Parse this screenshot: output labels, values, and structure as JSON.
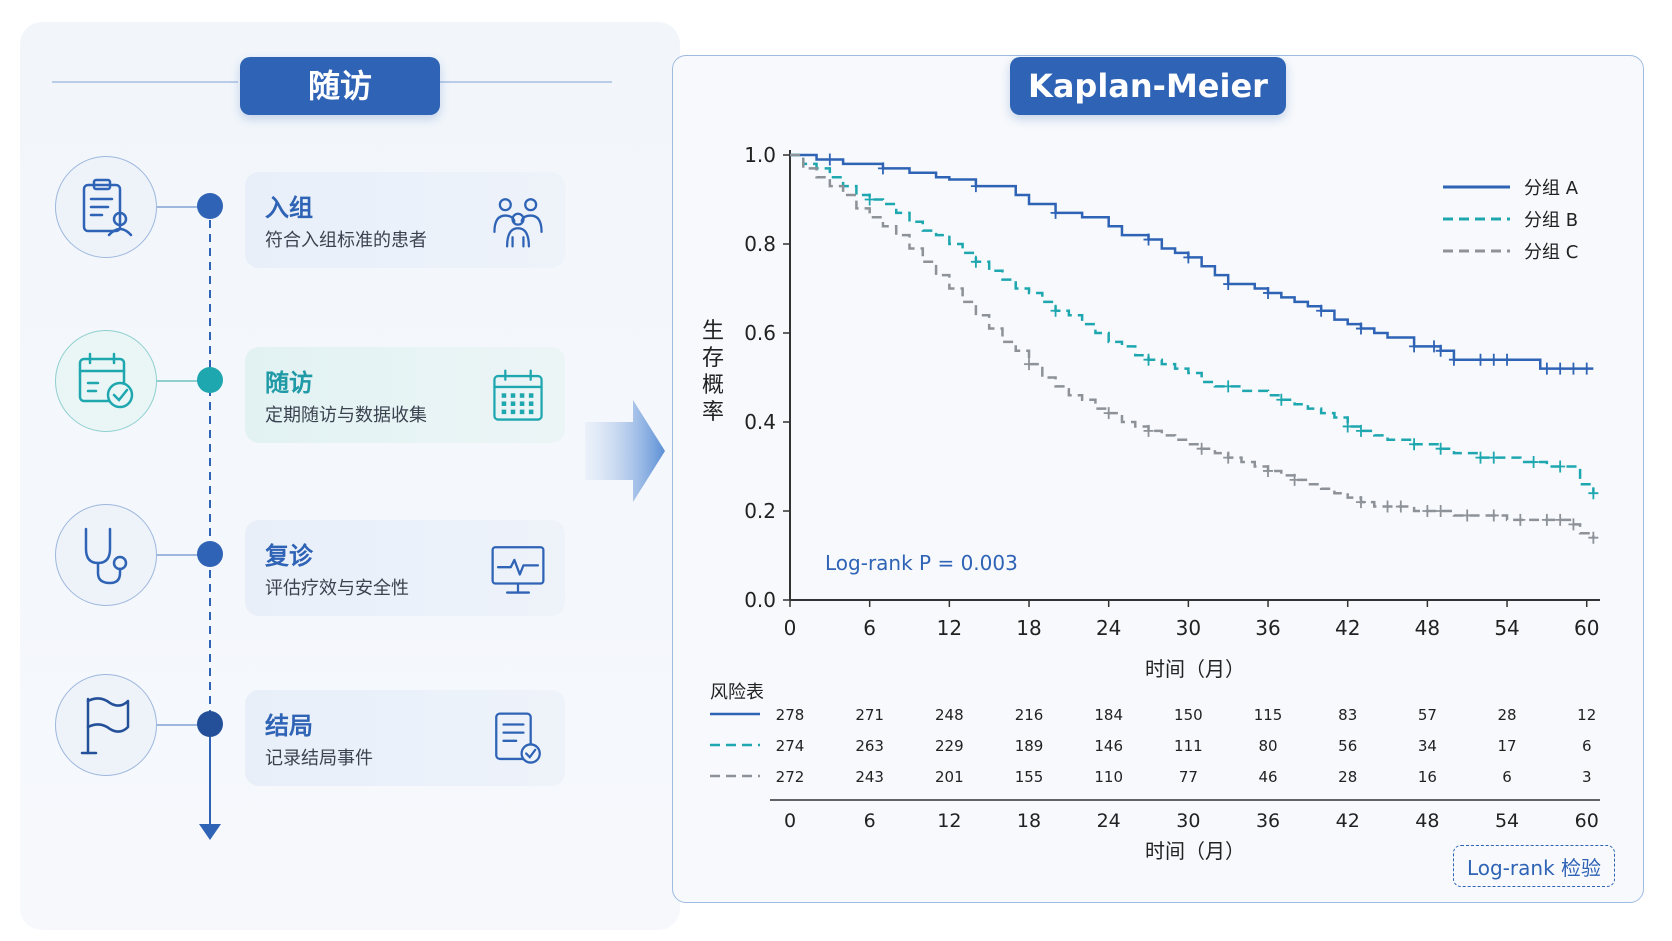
{
  "left": {
    "title": "随访",
    "steps": [
      {
        "title": "入组",
        "subtitle": "符合入组标准的患者",
        "icon": "clipboard-user-icon",
        "card_icon": "people-group-icon",
        "color": "#2f63b5"
      },
      {
        "title": "随访",
        "subtitle": "定期随访与数据收集",
        "icon": "calendar-check-icon",
        "card_icon": "calendar-grid-icon",
        "color": "#1fa7b0"
      },
      {
        "title": "复诊",
        "subtitle": "评估疗效与安全性",
        "icon": "stethoscope-icon",
        "card_icon": "monitor-pulse-icon",
        "color": "#2f63b5"
      },
      {
        "title": "结局",
        "subtitle": "记录结局事件",
        "icon": "flag-icon",
        "card_icon": "document-check-icon",
        "color": "#24509a"
      }
    ]
  },
  "right": {
    "title": "Kaplan-Meier",
    "button_label": "Log-rank 检验"
  },
  "chart_data": {
    "type": "line",
    "title": "Kaplan-Meier",
    "xlabel": "时间（月）",
    "ylabel": "生存概率",
    "xlim": [
      0,
      61
    ],
    "ylim": [
      0,
      1
    ],
    "x_ticks": [
      0,
      6,
      12,
      18,
      24,
      30,
      36,
      42,
      48,
      54,
      60
    ],
    "y_ticks": [
      "0.0",
      "0.2",
      "0.4",
      "0.6",
      "0.8",
      "1.0"
    ],
    "annotation": "Log-rank  P = 0.003",
    "legend_position": "top-right",
    "series": [
      {
        "name": "分组 A",
        "color": "#2f63b5",
        "dash": "solid",
        "points": [
          [
            0,
            1.0
          ],
          [
            2,
            0.99
          ],
          [
            4,
            0.98
          ],
          [
            7,
            0.97
          ],
          [
            9,
            0.96
          ],
          [
            11,
            0.95
          ],
          [
            12,
            0.945
          ],
          [
            14,
            0.93
          ],
          [
            17,
            0.91
          ],
          [
            18,
            0.89
          ],
          [
            20,
            0.87
          ],
          [
            22,
            0.86
          ],
          [
            24,
            0.84
          ],
          [
            25,
            0.82
          ],
          [
            27,
            0.81
          ],
          [
            28,
            0.79
          ],
          [
            29,
            0.78
          ],
          [
            30,
            0.77
          ],
          [
            31,
            0.75
          ],
          [
            32,
            0.73
          ],
          [
            33,
            0.71
          ],
          [
            34,
            0.71
          ],
          [
            35,
            0.7
          ],
          [
            36,
            0.69
          ],
          [
            37,
            0.68
          ],
          [
            38,
            0.67
          ],
          [
            39,
            0.66
          ],
          [
            40,
            0.65
          ],
          [
            41,
            0.63
          ],
          [
            42,
            0.62
          ],
          [
            43,
            0.61
          ],
          [
            44,
            0.6
          ],
          [
            45,
            0.59
          ],
          [
            46,
            0.59
          ],
          [
            47,
            0.57
          ],
          [
            48,
            0.57
          ],
          [
            49,
            0.56
          ],
          [
            50,
            0.54
          ],
          [
            53,
            0.54
          ],
          [
            56,
            0.54
          ],
          [
            56.5,
            0.52
          ],
          [
            60.5,
            0.52
          ]
        ],
        "censor_x": [
          3,
          7,
          14,
          20,
          27,
          30,
          33,
          36,
          40,
          43,
          47,
          48.5,
          49,
          50,
          52,
          53,
          54,
          57,
          58,
          59,
          60
        ]
      },
      {
        "name": "分组 B",
        "color": "#1fa7b0",
        "dash": "dash",
        "points": [
          [
            0,
            1.0
          ],
          [
            1,
            0.98
          ],
          [
            2,
            0.97
          ],
          [
            3,
            0.95
          ],
          [
            4,
            0.93
          ],
          [
            5,
            0.91
          ],
          [
            6,
            0.9
          ],
          [
            7,
            0.89
          ],
          [
            8,
            0.87
          ],
          [
            9,
            0.85
          ],
          [
            10,
            0.83
          ],
          [
            11,
            0.82
          ],
          [
            12,
            0.8
          ],
          [
            13,
            0.78
          ],
          [
            14,
            0.76
          ],
          [
            15,
            0.74
          ],
          [
            16,
            0.72
          ],
          [
            17,
            0.7
          ],
          [
            18,
            0.69
          ],
          [
            19,
            0.67
          ],
          [
            20,
            0.65
          ],
          [
            21,
            0.64
          ],
          [
            22,
            0.62
          ],
          [
            23,
            0.6
          ],
          [
            24,
            0.58
          ],
          [
            25,
            0.57
          ],
          [
            26,
            0.55
          ],
          [
            27,
            0.54
          ],
          [
            28,
            0.53
          ],
          [
            29,
            0.52
          ],
          [
            30,
            0.51
          ],
          [
            31,
            0.49
          ],
          [
            32,
            0.48
          ],
          [
            33,
            0.48
          ],
          [
            34,
            0.47
          ],
          [
            35,
            0.47
          ],
          [
            36,
            0.46
          ],
          [
            37,
            0.45
          ],
          [
            38,
            0.44
          ],
          [
            39,
            0.43
          ],
          [
            40,
            0.42
          ],
          [
            41,
            0.41
          ],
          [
            42,
            0.39
          ],
          [
            43,
            0.38
          ],
          [
            44,
            0.37
          ],
          [
            45,
            0.36
          ],
          [
            46,
            0.36
          ],
          [
            47,
            0.35
          ],
          [
            48,
            0.35
          ],
          [
            49,
            0.34
          ],
          [
            50,
            0.33
          ],
          [
            51,
            0.33
          ],
          [
            52,
            0.32
          ],
          [
            54,
            0.32
          ],
          [
            55,
            0.31
          ],
          [
            56,
            0.31
          ],
          [
            57,
            0.3
          ],
          [
            58,
            0.3
          ],
          [
            59,
            0.3
          ],
          [
            59.5,
            0.26
          ],
          [
            60.5,
            0.24
          ]
        ],
        "censor_x": [
          6,
          14,
          20,
          27,
          33,
          37,
          42,
          43,
          47,
          49,
          52,
          53,
          56,
          58,
          60.5
        ]
      },
      {
        "name": "分组 C",
        "color": "#8d9299",
        "dash": "dash",
        "points": [
          [
            0,
            1.0
          ],
          [
            1,
            0.97
          ],
          [
            2,
            0.95
          ],
          [
            3,
            0.93
          ],
          [
            4,
            0.91
          ],
          [
            5,
            0.88
          ],
          [
            6,
            0.86
          ],
          [
            7,
            0.84
          ],
          [
            8,
            0.82
          ],
          [
            9,
            0.79
          ],
          [
            10,
            0.76
          ],
          [
            11,
            0.73
          ],
          [
            12,
            0.7
          ],
          [
            13,
            0.67
          ],
          [
            14,
            0.64
          ],
          [
            15,
            0.61
          ],
          [
            16,
            0.58
          ],
          [
            17,
            0.56
          ],
          [
            18,
            0.53
          ],
          [
            19,
            0.5
          ],
          [
            20,
            0.48
          ],
          [
            21,
            0.46
          ],
          [
            22,
            0.45
          ],
          [
            23,
            0.43
          ],
          [
            24,
            0.42
          ],
          [
            25,
            0.4
          ],
          [
            26,
            0.39
          ],
          [
            27,
            0.38
          ],
          [
            28,
            0.37
          ],
          [
            29,
            0.36
          ],
          [
            30,
            0.35
          ],
          [
            31,
            0.34
          ],
          [
            32,
            0.33
          ],
          [
            33,
            0.32
          ],
          [
            34,
            0.31
          ],
          [
            35,
            0.3
          ],
          [
            36,
            0.29
          ],
          [
            37,
            0.28
          ],
          [
            38,
            0.27
          ],
          [
            39,
            0.26
          ],
          [
            40,
            0.25
          ],
          [
            41,
            0.24
          ],
          [
            42,
            0.23
          ],
          [
            43,
            0.22
          ],
          [
            44,
            0.21
          ],
          [
            46,
            0.21
          ],
          [
            47,
            0.2
          ],
          [
            48,
            0.2
          ],
          [
            50,
            0.19
          ],
          [
            52,
            0.19
          ],
          [
            54,
            0.18
          ],
          [
            56,
            0.18
          ],
          [
            58,
            0.18
          ],
          [
            59,
            0.17
          ],
          [
            59.5,
            0.15
          ],
          [
            60.5,
            0.14
          ]
        ],
        "censor_x": [
          18,
          24,
          27,
          31,
          33,
          36,
          38,
          43,
          45,
          46,
          48,
          49,
          51,
          53,
          55,
          57,
          58,
          59,
          60.5
        ]
      }
    ],
    "risk_table": {
      "title": "风险表",
      "x": [
        0,
        6,
        12,
        18,
        24,
        30,
        36,
        42,
        48,
        54,
        60
      ],
      "rows": [
        [
          278,
          271,
          248,
          216,
          184,
          150,
          115,
          83,
          57,
          28,
          12
        ],
        [
          274,
          263,
          229,
          189,
          146,
          111,
          80,
          56,
          34,
          17,
          6
        ],
        [
          272,
          243,
          201,
          155,
          110,
          77,
          46,
          28,
          16,
          6,
          3
        ]
      ],
      "xlabel": "时间（月）"
    }
  }
}
